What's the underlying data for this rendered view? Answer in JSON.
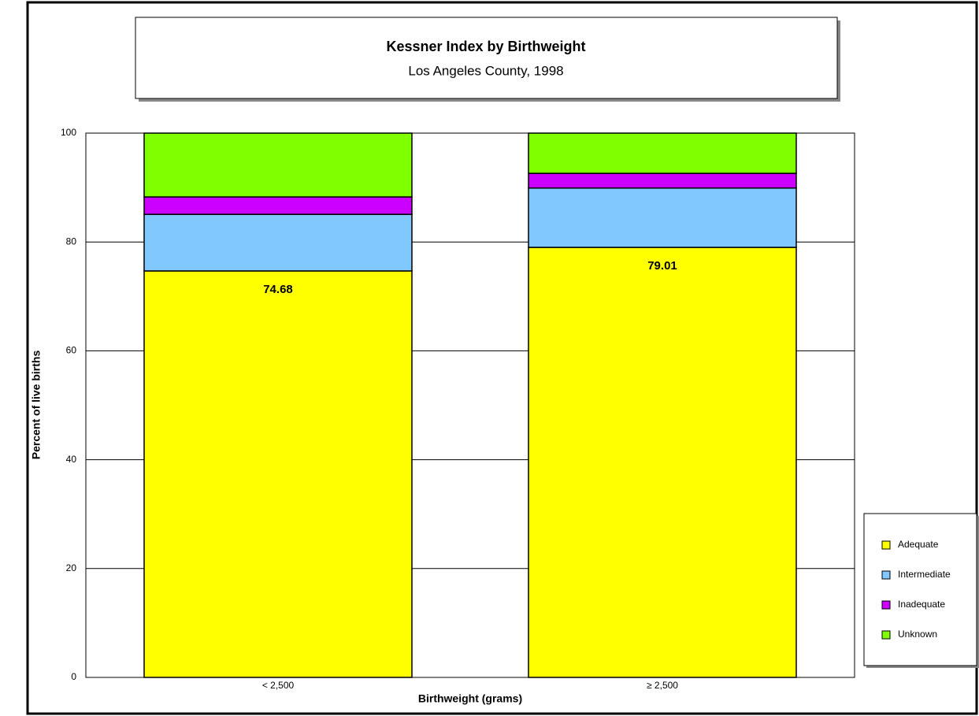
{
  "chart_data": {
    "type": "stacked_bar",
    "title": "Kessner Index by Birthweight",
    "subtitle": "Los Angeles County, 1998",
    "x_label": "Birthweight (grams)",
    "y_label": "Percent of live births",
    "categories": [
      "< 2,500",
      "≥ 2,500"
    ],
    "series": [
      {
        "name": "Adequate",
        "color": "#ffff00",
        "values": [
          74.68,
          79.01
        ],
        "data_labels": true
      },
      {
        "name": "Intermediate",
        "color": "#80c8ff",
        "values": [
          10.4,
          10.9
        ]
      },
      {
        "name": "Inadequate",
        "color": "#cc00ff",
        "values": [
          3.2,
          2.7
        ]
      },
      {
        "name": "Unknown",
        "color": "#80ff00",
        "values": [
          11.72,
          7.39
        ]
      }
    ],
    "ylim": [
      0,
      100
    ],
    "yticks": [
      0,
      20,
      40,
      60,
      80,
      100
    ],
    "grid": true,
    "legend": "right"
  }
}
